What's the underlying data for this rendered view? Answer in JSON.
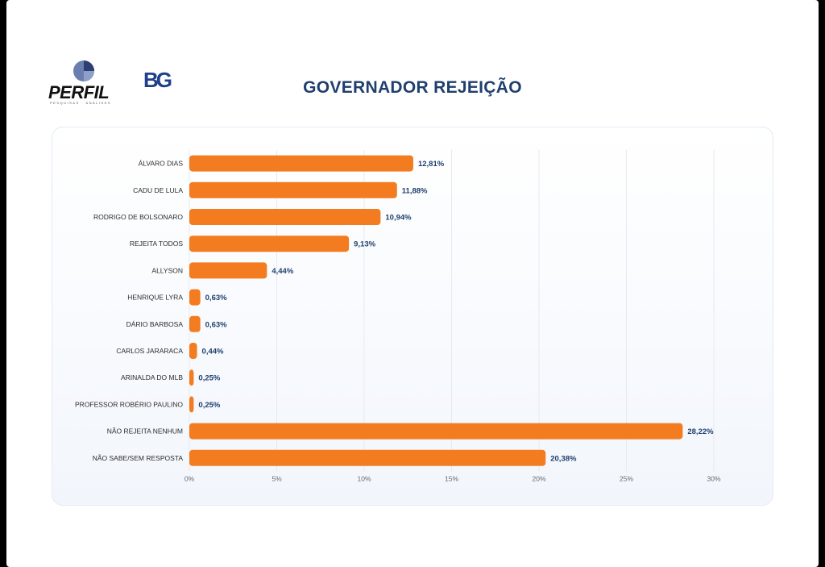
{
  "branding": {
    "perfil_logo_text": "PERFIL",
    "perfil_tagline": "PESQUISAS · ANÁLISES",
    "bg_logo_text": "BG"
  },
  "colors": {
    "bar": "#f47c20",
    "title": "#1f3f6e",
    "value_label": "#1f3f6e",
    "grid": "#e6eaf0"
  },
  "chart_data": {
    "type": "bar",
    "orientation": "horizontal",
    "title": "GOVERNADOR REJEIÇÃO",
    "categories": [
      "ÁLVARO DIAS",
      "CADU DE LULA",
      "RODRIGO DE BOLSONARO",
      "REJEITA TODOS",
      "ALLYSON",
      "HENRIQUE LYRA",
      "DÁRIO BARBOSA",
      "CARLOS JARARACA",
      "ARINALDA DO MLB",
      "PROFESSOR ROBÉRIO PAULINO",
      "NÃO REJEITA NENHUM",
      "NÃO SABE/SEM RESPOSTA"
    ],
    "values": [
      12.81,
      11.88,
      10.94,
      9.13,
      4.44,
      0.63,
      0.63,
      0.44,
      0.25,
      0.25,
      28.22,
      20.38
    ],
    "value_labels": [
      "12,81%",
      "11,88%",
      "10,94%",
      "9,13%",
      "4,44%",
      "0,63%",
      "0,63%",
      "0,44%",
      "0,25%",
      "0,25%",
      "28,22%",
      "20,38%"
    ],
    "xlim": [
      0,
      30
    ],
    "xticks": [
      0,
      5,
      10,
      15,
      20,
      25,
      30
    ],
    "xtick_labels": [
      "0%",
      "5%",
      "10%",
      "15%",
      "20%",
      "25%",
      "30%"
    ],
    "grid": true,
    "xlabel": "",
    "ylabel": ""
  }
}
